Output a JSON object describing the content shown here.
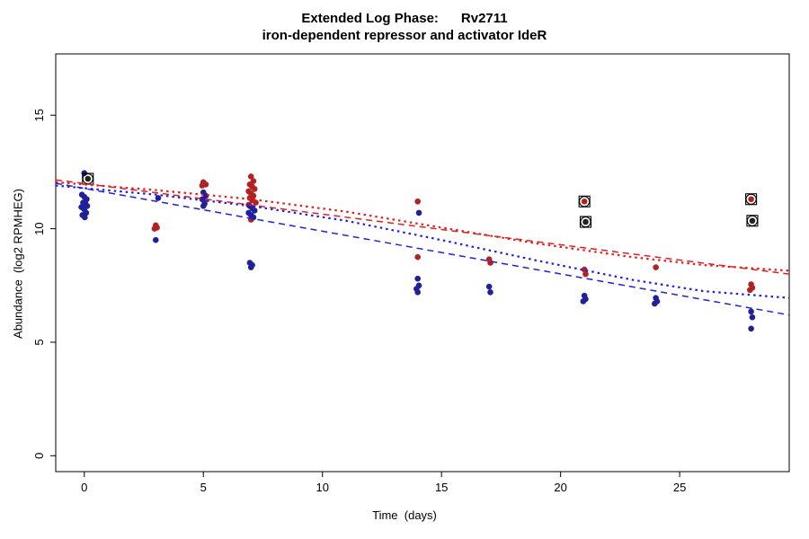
{
  "chart_data": {
    "type": "scatter",
    "title": "Extended Log Phase:      Rv2711",
    "subtitle": "iron-dependent repressor and activator IdeR",
    "xlabel": "Time  (days)",
    "ylabel": "Abundance  (log2 RPMHEG)",
    "xlim": [
      -1.2,
      29.6
    ],
    "ylim": [
      -0.7,
      17.7
    ],
    "xticks": [
      0,
      5,
      10,
      15,
      20,
      25
    ],
    "yticks": [
      0,
      5,
      10,
      15
    ],
    "grid": false,
    "legend": "none",
    "colors": {
      "red_point": "#b22222",
      "blue_point": "#20209a",
      "red_line": "#e02020",
      "blue_line": "#2020e0",
      "marker_outline": "#000000",
      "axis": "#000000"
    },
    "series": [
      {
        "name": "red-points",
        "type": "scatter",
        "color": "#b22222",
        "points": [
          [
            3.0,
            10.15
          ],
          [
            3.05,
            10.05
          ],
          [
            2.95,
            10.0
          ],
          [
            5.0,
            12.05
          ],
          [
            5.1,
            11.95
          ],
          [
            4.95,
            11.9
          ],
          [
            5.05,
            11.2
          ],
          [
            7.0,
            12.3
          ],
          [
            7.1,
            12.1
          ],
          [
            6.95,
            11.95
          ],
          [
            7.05,
            11.85
          ],
          [
            7.15,
            11.75
          ],
          [
            6.9,
            11.65
          ],
          [
            7.0,
            11.55
          ],
          [
            7.1,
            11.45
          ],
          [
            6.95,
            11.35
          ],
          [
            7.05,
            11.25
          ],
          [
            7.2,
            11.15
          ],
          [
            6.9,
            11.05
          ],
          [
            7.0,
            10.4
          ],
          [
            14.0,
            11.2
          ],
          [
            14.0,
            8.75
          ],
          [
            17.0,
            8.65
          ],
          [
            17.05,
            8.5
          ],
          [
            21.0,
            8.2
          ],
          [
            21.05,
            8.0
          ],
          [
            24.0,
            8.3
          ],
          [
            28.0,
            7.55
          ],
          [
            28.05,
            7.4
          ],
          [
            27.95,
            7.3
          ]
        ]
      },
      {
        "name": "blue-points",
        "type": "scatter",
        "color": "#20209a",
        "points": [
          [
            0.0,
            12.45
          ],
          [
            -0.1,
            11.5
          ],
          [
            0.0,
            11.4
          ],
          [
            0.1,
            11.3
          ],
          [
            -0.05,
            11.15
          ],
          [
            0.05,
            11.1
          ],
          [
            0.12,
            11.0
          ],
          [
            -0.12,
            10.95
          ],
          [
            0.0,
            10.85
          ],
          [
            0.08,
            10.7
          ],
          [
            -0.08,
            10.6
          ],
          [
            0.02,
            10.5
          ],
          [
            3.1,
            11.35
          ],
          [
            3.0,
            9.5
          ],
          [
            5.0,
            11.6
          ],
          [
            5.1,
            11.45
          ],
          [
            4.95,
            11.3
          ],
          [
            5.05,
            11.1
          ],
          [
            5.0,
            11.0
          ],
          [
            6.95,
            11.0
          ],
          [
            7.05,
            10.9
          ],
          [
            7.15,
            10.8
          ],
          [
            6.9,
            10.7
          ],
          [
            7.0,
            10.6
          ],
          [
            7.1,
            10.5
          ],
          [
            6.95,
            8.5
          ],
          [
            7.05,
            8.4
          ],
          [
            7.0,
            8.3
          ],
          [
            14.05,
            10.7
          ],
          [
            14.0,
            7.8
          ],
          [
            14.05,
            7.5
          ],
          [
            13.95,
            7.35
          ],
          [
            14.0,
            7.2
          ],
          [
            17.0,
            7.45
          ],
          [
            17.05,
            7.2
          ],
          [
            21.0,
            7.05
          ],
          [
            21.05,
            6.9
          ],
          [
            20.95,
            6.8
          ],
          [
            24.0,
            6.95
          ],
          [
            24.05,
            6.8
          ],
          [
            23.95,
            6.7
          ],
          [
            28.0,
            6.35
          ],
          [
            28.05,
            6.1
          ],
          [
            28.0,
            5.6
          ]
        ]
      },
      {
        "name": "marked-outliers",
        "type": "scatter-marked",
        "colors": [
          "#222222",
          "#b22222",
          "#222222",
          "#b22222",
          "#222222"
        ],
        "points": [
          [
            0.15,
            12.2
          ],
          [
            21.0,
            11.2
          ],
          [
            21.05,
            10.3
          ],
          [
            28.0,
            11.3
          ],
          [
            28.05,
            10.35
          ]
        ]
      },
      {
        "name": "red-dashed-fit",
        "type": "line",
        "color": "#e02020",
        "dash": "dashed",
        "points": [
          [
            -1.2,
            12.15
          ],
          [
            29.6,
            8.0
          ]
        ]
      },
      {
        "name": "red-dotted-fit",
        "type": "line",
        "color": "#e02020",
        "dash": "dotted",
        "points": [
          [
            -1.2,
            12.05
          ],
          [
            3,
            11.7
          ],
          [
            7,
            11.3
          ],
          [
            11,
            10.75
          ],
          [
            15,
            10.05
          ],
          [
            19,
            9.35
          ],
          [
            23,
            8.75
          ],
          [
            26,
            8.4
          ],
          [
            29.6,
            8.15
          ]
        ]
      },
      {
        "name": "blue-dashed-fit",
        "type": "line",
        "color": "#2020e0",
        "dash": "dashed",
        "points": [
          [
            -1.2,
            12.0
          ],
          [
            29.6,
            6.2
          ]
        ]
      },
      {
        "name": "blue-dotted-fit",
        "type": "line",
        "color": "#2020e0",
        "dash": "dotted",
        "points": [
          [
            -1.2,
            11.9
          ],
          [
            3,
            11.5
          ],
          [
            7,
            11.0
          ],
          [
            11,
            10.35
          ],
          [
            15,
            9.5
          ],
          [
            19,
            8.6
          ],
          [
            23,
            7.75
          ],
          [
            26,
            7.25
          ],
          [
            29.6,
            6.95
          ]
        ]
      }
    ]
  }
}
